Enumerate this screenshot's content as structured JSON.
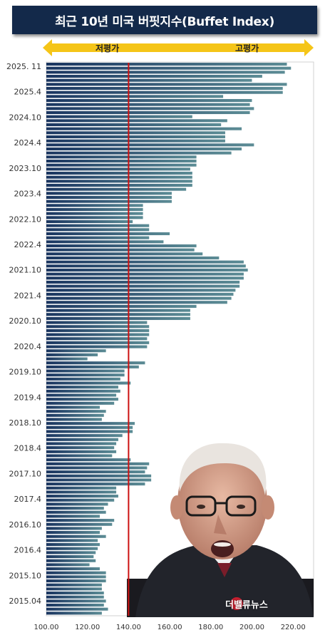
{
  "title": "최근 10년 미국 버핏지수(Buffet Index)",
  "arrow": {
    "low_label": "저평가",
    "high_label": "고평가",
    "color": "#f5c518"
  },
  "watermark": "더밸류뉴스",
  "photo_icon": "warren-buffett-photo",
  "colors": {
    "bar_dark": "#1a3560",
    "bar_light": "#5c8c95",
    "reference_line": "#cc1111"
  },
  "chart_data": {
    "type": "bar",
    "orientation": "horizontal",
    "title": "최근 10년 미국 버핏지수(Buffet Index)",
    "xlabel": "",
    "ylabel": "",
    "xlim": [
      100,
      230
    ],
    "x_ticks": [
      "100.00",
      "120.00",
      "140.00",
      "160.00",
      "180.00",
      "200.00",
      "220.00"
    ],
    "y_tick_labels": [
      "2025. 11",
      "2025.4",
      "2024.10",
      "2024.4",
      "2023.10",
      "2023.4",
      "2022.10",
      "2022.4",
      "2021.10",
      "2021.4",
      "2020.10",
      "2020.4",
      "2019.10",
      "2019.4",
      "2018.10",
      "2018.4",
      "2017.10",
      "2017.4",
      "2016.10",
      "2016.4",
      "2015.10",
      "2015.04"
    ],
    "reference_line": 140,
    "grid": false,
    "legend": "none",
    "values": [
      217,
      219,
      216,
      205,
      200,
      217,
      215,
      215,
      186,
      200,
      199,
      201,
      199,
      171,
      188,
      185,
      195,
      187,
      187,
      187,
      201,
      195,
      190,
      173,
      173,
      173,
      170,
      171,
      171,
      171,
      171,
      168,
      161,
      161,
      161,
      147,
      147,
      147,
      147,
      142,
      150,
      150,
      160,
      150,
      157,
      173,
      172,
      176,
      184,
      196,
      197,
      198,
      196,
      196,
      194,
      194,
      192,
      191,
      190,
      188,
      173,
      170,
      170,
      170,
      149,
      150,
      150,
      150,
      149,
      150,
      149,
      129,
      125,
      120,
      148,
      145,
      138,
      138,
      136,
      141,
      135,
      136,
      134,
      135,
      133,
      126,
      129,
      128,
      127,
      143,
      142,
      142,
      137,
      135,
      134,
      133,
      134,
      132,
      141,
      150,
      149,
      148,
      151,
      151,
      148,
      134,
      134,
      135,
      133,
      130,
      128,
      129,
      126,
      133,
      132,
      127,
      126,
      129,
      125,
      126,
      125,
      124,
      123,
      124,
      121,
      126,
      129,
      129,
      129,
      127,
      127,
      128,
      128,
      129,
      128,
      130,
      127
    ]
  }
}
